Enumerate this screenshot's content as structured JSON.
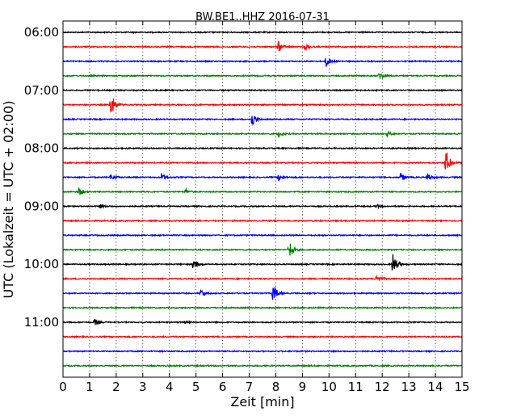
{
  "chart_data": {
    "type": "line",
    "title": "BW.BE1..HHZ 2016-07-31",
    "xlabel": "Zeit  [min]",
    "ylabel": "UTC (Lokalzeit = UTC + 02:00)",
    "xlim": [
      0,
      15
    ],
    "x_ticks": [
      "0",
      "1",
      "2",
      "3",
      "4",
      "5",
      "6",
      "7",
      "8",
      "9",
      "10",
      "11",
      "12",
      "13",
      "14",
      "15"
    ],
    "y_ticks": [
      "06:00",
      "07:00",
      "08:00",
      "09:00",
      "10:00",
      "11:00"
    ],
    "grid": "vertical dotted lines at each minute",
    "trace_interval_minutes": 15,
    "colors": [
      "#000000",
      "#ff0000",
      "#0000ff",
      "#008000"
    ],
    "traces": [
      {
        "start": "06:00",
        "color": "#000000",
        "events": []
      },
      {
        "start": "06:15",
        "color": "#ff0000",
        "events": [
          {
            "t": 8.1,
            "amp": 0.5
          },
          {
            "t": 9.1,
            "amp": 0.3
          }
        ]
      },
      {
        "start": "06:30",
        "color": "#0000ff",
        "events": [
          {
            "t": 9.9,
            "amp": 0.5
          }
        ]
      },
      {
        "start": "06:45",
        "color": "#008000",
        "events": [
          {
            "t": 11.9,
            "amp": 0.4
          }
        ]
      },
      {
        "start": "07:00",
        "color": "#000000",
        "events": []
      },
      {
        "start": "07:15",
        "color": "#ff0000",
        "events": [
          {
            "t": 1.8,
            "amp": 1.2
          }
        ]
      },
      {
        "start": "07:30",
        "color": "#0000ff",
        "events": [
          {
            "t": 7.1,
            "amp": 0.7
          }
        ]
      },
      {
        "start": "07:45",
        "color": "#008000",
        "events": [
          {
            "t": 8.1,
            "amp": 0.3
          },
          {
            "t": 12.2,
            "amp": 0.2
          }
        ]
      },
      {
        "start": "08:00",
        "color": "#000000",
        "events": []
      },
      {
        "start": "08:15",
        "color": "#ff0000",
        "events": [
          {
            "t": 14.4,
            "amp": 1.2
          }
        ]
      },
      {
        "start": "08:30",
        "color": "#0000ff",
        "events": [
          {
            "t": 1.8,
            "amp": 0.3
          },
          {
            "t": 3.7,
            "amp": 0.4
          },
          {
            "t": 8.1,
            "amp": 0.3
          },
          {
            "t": 12.7,
            "amp": 0.4
          },
          {
            "t": 13.7,
            "amp": 0.4
          }
        ]
      },
      {
        "start": "08:45",
        "color": "#008000",
        "events": [
          {
            "t": 0.6,
            "amp": 0.4
          },
          {
            "t": 4.6,
            "amp": 0.3
          }
        ]
      },
      {
        "start": "09:00",
        "color": "#000000",
        "events": [
          {
            "t": 1.4,
            "amp": 0.15
          },
          {
            "t": 11.8,
            "amp": 0.15
          }
        ]
      },
      {
        "start": "09:15",
        "color": "#ff0000",
        "events": []
      },
      {
        "start": "09:30",
        "color": "#0000ff",
        "events": []
      },
      {
        "start": "09:45",
        "color": "#008000",
        "events": [
          {
            "t": 8.5,
            "amp": 0.9
          }
        ]
      },
      {
        "start": "10:00",
        "color": "#000000",
        "events": [
          {
            "t": 4.9,
            "amp": 0.5
          },
          {
            "t": 12.4,
            "amp": 1.0
          }
        ]
      },
      {
        "start": "10:15",
        "color": "#ff0000",
        "events": [
          {
            "t": 11.8,
            "amp": 0.4
          }
        ]
      },
      {
        "start": "10:30",
        "color": "#0000ff",
        "events": [
          {
            "t": 5.2,
            "amp": 0.4
          },
          {
            "t": 7.9,
            "amp": 0.9
          }
        ]
      },
      {
        "start": "10:45",
        "color": "#008000",
        "events": []
      },
      {
        "start": "11:00",
        "color": "#000000",
        "events": [
          {
            "t": 1.2,
            "amp": 0.3
          },
          {
            "t": 4.6,
            "amp": 0.1
          }
        ]
      },
      {
        "start": "11:15",
        "color": "#ff0000",
        "events": []
      },
      {
        "start": "11:30",
        "color": "#0000ff",
        "events": []
      },
      {
        "start": "11:45",
        "color": "#008000",
        "events": []
      }
    ]
  }
}
